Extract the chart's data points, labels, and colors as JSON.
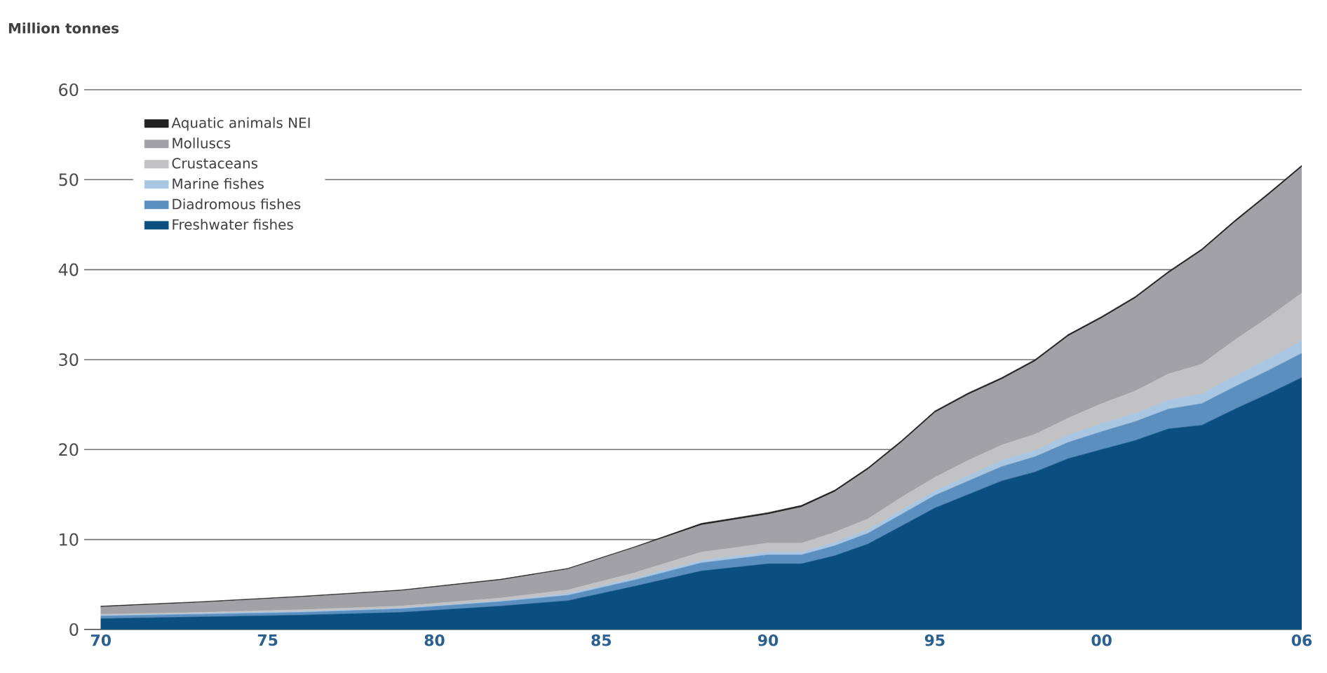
{
  "chart_data": {
    "type": "area",
    "stacked": true,
    "ylabel": "Million tonnes",
    "x": [
      1970,
      1973,
      1976,
      1979,
      1982,
      1984,
      1986,
      1988,
      1990,
      1991,
      1992,
      1993,
      1994,
      1995,
      1996,
      1997,
      1998,
      1999,
      2000,
      2001,
      2002,
      2003,
      2004,
      2005,
      2006
    ],
    "series": [
      {
        "name": "Freshwater fishes",
        "color": "#0a4f80",
        "values": [
          1.2,
          1.4,
          1.6,
          1.9,
          2.6,
          3.2,
          4.8,
          6.5,
          7.3,
          7.3,
          8.2,
          9.5,
          11.5,
          13.5,
          15,
          16.5,
          17.5,
          19,
          20,
          21,
          22.3,
          22.7,
          24.5,
          26.2,
          28
        ]
      },
      {
        "name": "Diadromous fishes",
        "color": "#5b8fbf",
        "values": [
          0.3,
          0.3,
          0.3,
          0.4,
          0.5,
          0.6,
          0.7,
          0.9,
          1.0,
          1.0,
          1.1,
          1.2,
          1.3,
          1.4,
          1.5,
          1.6,
          1.7,
          1.8,
          2.0,
          2.1,
          2.2,
          2.4,
          2.5,
          2.6,
          2.7
        ]
      },
      {
        "name": "Marine fishes",
        "color": "#a9c6e2",
        "values": [
          0.1,
          0.1,
          0.1,
          0.1,
          0.1,
          0.2,
          0.2,
          0.3,
          0.3,
          0.3,
          0.4,
          0.4,
          0.5,
          0.5,
          0.6,
          0.7,
          0.7,
          0.8,
          0.9,
          0.9,
          1.0,
          1.1,
          1.2,
          1.3,
          1.4
        ]
      },
      {
        "name": "Crustaceans",
        "color": "#c2c2c4",
        "values": [
          0.1,
          0.1,
          0.2,
          0.2,
          0.3,
          0.4,
          0.6,
          0.9,
          1.0,
          1.0,
          1.1,
          1.2,
          1.4,
          1.5,
          1.7,
          1.7,
          1.8,
          1.9,
          2.2,
          2.5,
          2.9,
          3.3,
          4.0,
          4.6,
          5.3
        ]
      },
      {
        "name": "Molluscs",
        "color": "#a2a2a6",
        "values": [
          0.8,
          1.1,
          1.4,
          1.7,
          2.0,
          2.3,
          2.8,
          3.0,
          3.2,
          4.0,
          4.5,
          5.5,
          6.1,
          7.2,
          7.3,
          7.3,
          8.1,
          9.1,
          9.5,
          10.3,
          11.2,
          12.6,
          13.1,
          13.6,
          14.0
        ]
      },
      {
        "name": "Aquatic animals NEI",
        "color": "#222222",
        "values": [
          0.1,
          0.1,
          0.1,
          0.1,
          0.1,
          0.1,
          0.1,
          0.2,
          0.2,
          0.2,
          0.2,
          0.2,
          0.2,
          0.2,
          0.2,
          0.2,
          0.2,
          0.2,
          0.2,
          0.2,
          0.2,
          0.2,
          0.2,
          0.2,
          0.2
        ]
      }
    ],
    "xlim": [
      1969.5,
      2006
    ],
    "ylim": [
      0,
      60
    ],
    "xticks": [
      {
        "value": 1970,
        "label": "70"
      },
      {
        "value": 1975,
        "label": "75"
      },
      {
        "value": 1980,
        "label": "80"
      },
      {
        "value": 1985,
        "label": "85"
      },
      {
        "value": 1990,
        "label": "90"
      },
      {
        "value": 1995,
        "label": "95"
      },
      {
        "value": 2000,
        "label": "00"
      },
      {
        "value": 2006,
        "label": "06"
      }
    ],
    "yticks": [
      0,
      10,
      20,
      30,
      40,
      50,
      60
    ],
    "grid": "y",
    "legend": "top left"
  }
}
